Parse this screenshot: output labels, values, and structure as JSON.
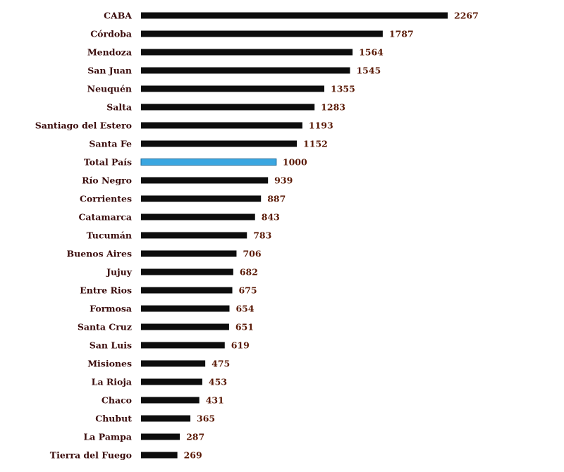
{
  "chart_data": {
    "type": "bar",
    "orientation": "horizontal",
    "categories": [
      "CABA",
      "Córdoba",
      "Mendoza",
      "San Juan",
      "Neuquén",
      "Salta",
      "Santiago del Estero",
      "Santa Fe",
      "Total País",
      "Río Negro",
      "Corrientes",
      "Catamarca",
      "Tucumán",
      "Buenos Aires",
      "Jujuy",
      "Entre Rios",
      "Formosa",
      "Santa Cruz",
      "San Luis",
      "Misiones",
      "La Rioja",
      "Chaco",
      "Chubut",
      "La Pampa",
      "Tierra del Fuego"
    ],
    "values": [
      2267,
      1787,
      1564,
      1545,
      1355,
      1283,
      1193,
      1152,
      1000,
      939,
      887,
      843,
      783,
      706,
      682,
      675,
      654,
      651,
      619,
      475,
      453,
      431,
      365,
      287,
      269
    ],
    "data_labels": [
      "2267",
      "1787",
      "1564",
      "1545",
      "1355",
      "1283",
      "1193",
      "1152",
      "1000",
      "939",
      "887",
      "843",
      "783",
      "706",
      "682",
      "675",
      "654",
      "651",
      "619",
      "475",
      "453",
      "431",
      "365",
      "287",
      "269"
    ],
    "highlight_category": "Total País",
    "colors": {
      "bar": "#0d0d0d",
      "highlight_bar": "#3aa6e0",
      "highlight_border": "#1b6a9a",
      "category_text": "#3a0c0c",
      "value_text": "#5a1a06"
    },
    "title": "",
    "xlabel": "",
    "ylabel": "",
    "grid": false,
    "legend": "none"
  }
}
